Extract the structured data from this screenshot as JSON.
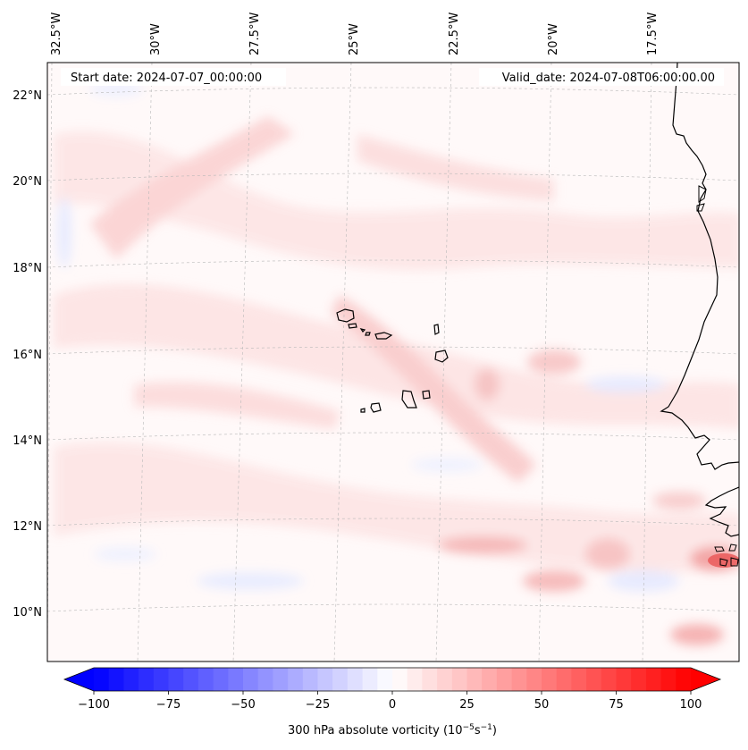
{
  "annotations": {
    "start_date": "Start date: 2024-07-07_00:00:00",
    "valid_date": "Valid_date: 2024-07-08T06:00:00.00"
  },
  "map": {
    "lon_labels": [
      "32.5°W",
      "30°W",
      "27.5°W",
      "25°W",
      "22.5°W",
      "20°W",
      "17.5°W"
    ],
    "lat_labels": [
      "22°N",
      "20°N",
      "18°N",
      "16°N",
      "14°N",
      "12°N",
      "10°N"
    ],
    "gridlines": "dashed",
    "fill_colors": {
      "weak_positive": "#fde4e4",
      "moderate_positive": "#f8c0c0",
      "weak_negative": "#e8ecff",
      "strong_positive": "#f08a8a"
    },
    "coastline_color": "#000000"
  },
  "colorbar": {
    "title_prefix": "300 hPa absolute vorticity (10",
    "title_exp1": "−5",
    "title_mid": "s",
    "title_exp2": "−1",
    "title_suffix": ")",
    "ticks": [
      "−100",
      "−75",
      "−50",
      "−25",
      "0",
      "25",
      "50",
      "75",
      "100"
    ],
    "min": -100,
    "max": 100,
    "n_levels": 40,
    "extend": "both",
    "colormap": "bwr",
    "color_low": "#0000ff",
    "color_mid": "#ffffff",
    "color_high": "#ff0000"
  }
}
